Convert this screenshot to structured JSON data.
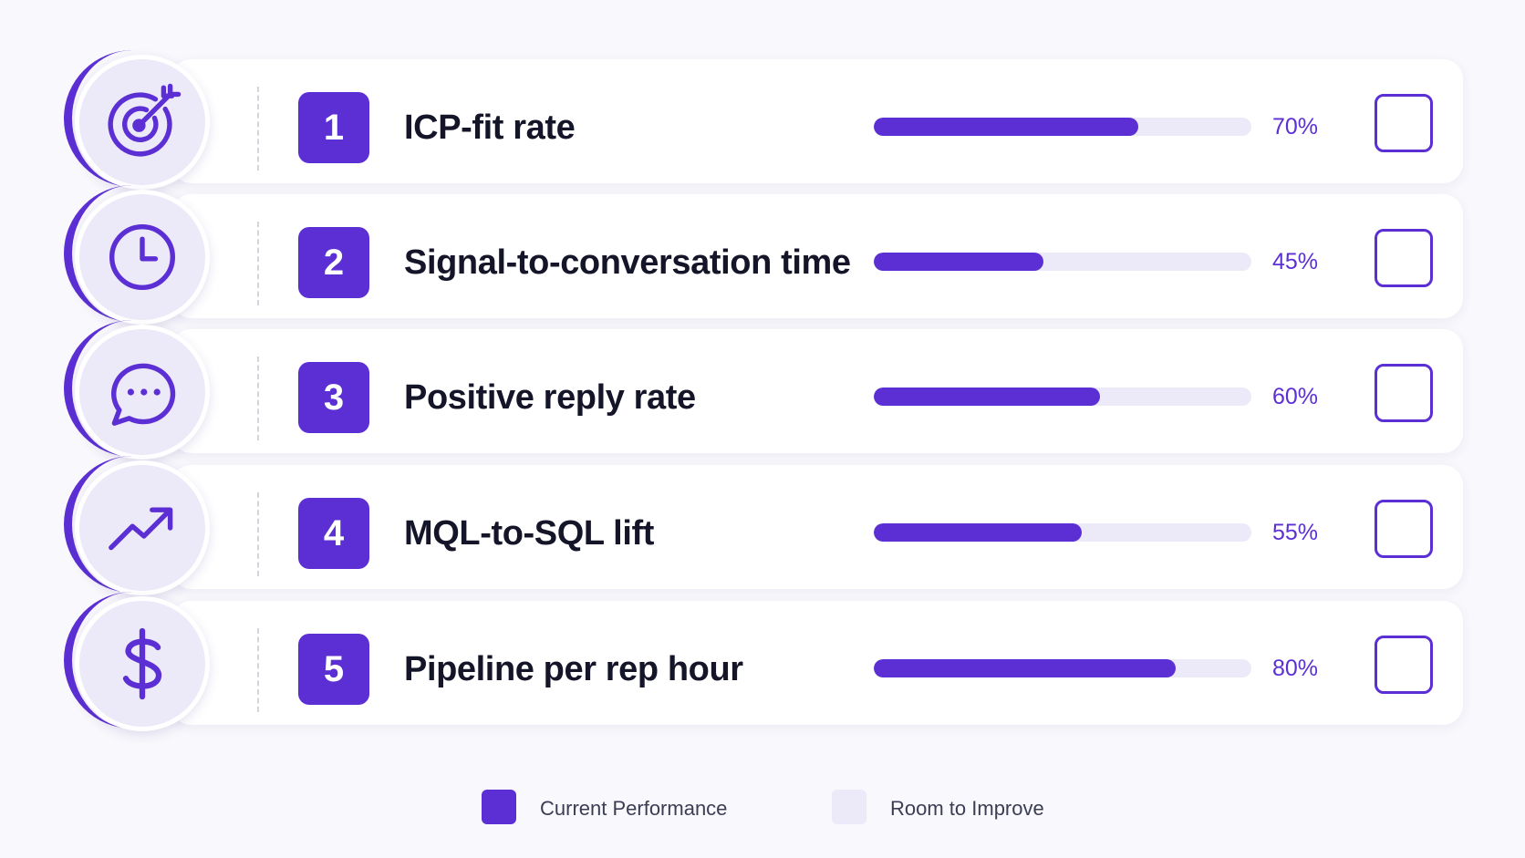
{
  "colors": {
    "current": "#5b2fd4",
    "room": "#ece9f8"
  },
  "chart_data": {
    "type": "bar",
    "orientation": "horizontal",
    "categories": [
      "ICP-fit rate",
      "Signal-to-conversation time",
      "Positive reply rate",
      "MQL-to-SQL lift",
      "Pipeline per rep hour"
    ],
    "ranks": [
      "1",
      "2",
      "3",
      "4",
      "5"
    ],
    "icons": [
      "target-icon",
      "clock-icon",
      "chat-bubble-icon",
      "trend-up-icon",
      "dollar-icon"
    ],
    "values": [
      70,
      45,
      60,
      55,
      80
    ],
    "value_labels": [
      "70%",
      "45%",
      "60%",
      "55%",
      "80%"
    ],
    "xlim": [
      0,
      100
    ],
    "series": [
      {
        "name": "Current Performance"
      },
      {
        "name": "Room to Improve"
      }
    ],
    "legend_position": "bottom-center"
  }
}
